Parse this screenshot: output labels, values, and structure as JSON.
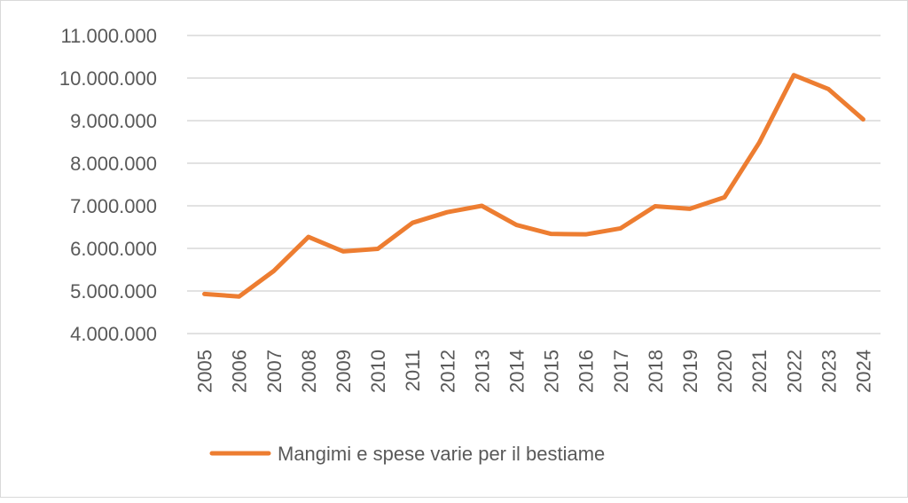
{
  "chart_data": {
    "type": "line",
    "title": "",
    "xlabel": "",
    "ylabel": "",
    "categories": [
      "2005",
      "2006",
      "2007",
      "2008",
      "2009",
      "2010",
      "2011",
      "2012",
      "2013",
      "2014",
      "2015",
      "2016",
      "2017",
      "2018",
      "2019",
      "2020",
      "2021",
      "2022",
      "2023",
      "2024"
    ],
    "series": [
      {
        "name": "Mangimi e spese varie per il bestiame",
        "color": "#ED7D31",
        "values": [
          4930000,
          4870000,
          5470000,
          6270000,
          5930000,
          5990000,
          6600000,
          6850000,
          7000000,
          6550000,
          6340000,
          6330000,
          6470000,
          6990000,
          6930000,
          7200000,
          8480000,
          10070000,
          9740000,
          9030000
        ]
      }
    ],
    "ylim": [
      4000000,
      11000000
    ],
    "yticks": [
      4000000,
      5000000,
      6000000,
      7000000,
      8000000,
      9000000,
      10000000,
      11000000
    ],
    "ytick_labels": [
      "4.000.000",
      "5.000.000",
      "6.000.000",
      "7.000.000",
      "8.000.000",
      "9.000.000",
      "10.000.000",
      "11.000.000"
    ],
    "grid": true,
    "legend_position": "bottom"
  }
}
